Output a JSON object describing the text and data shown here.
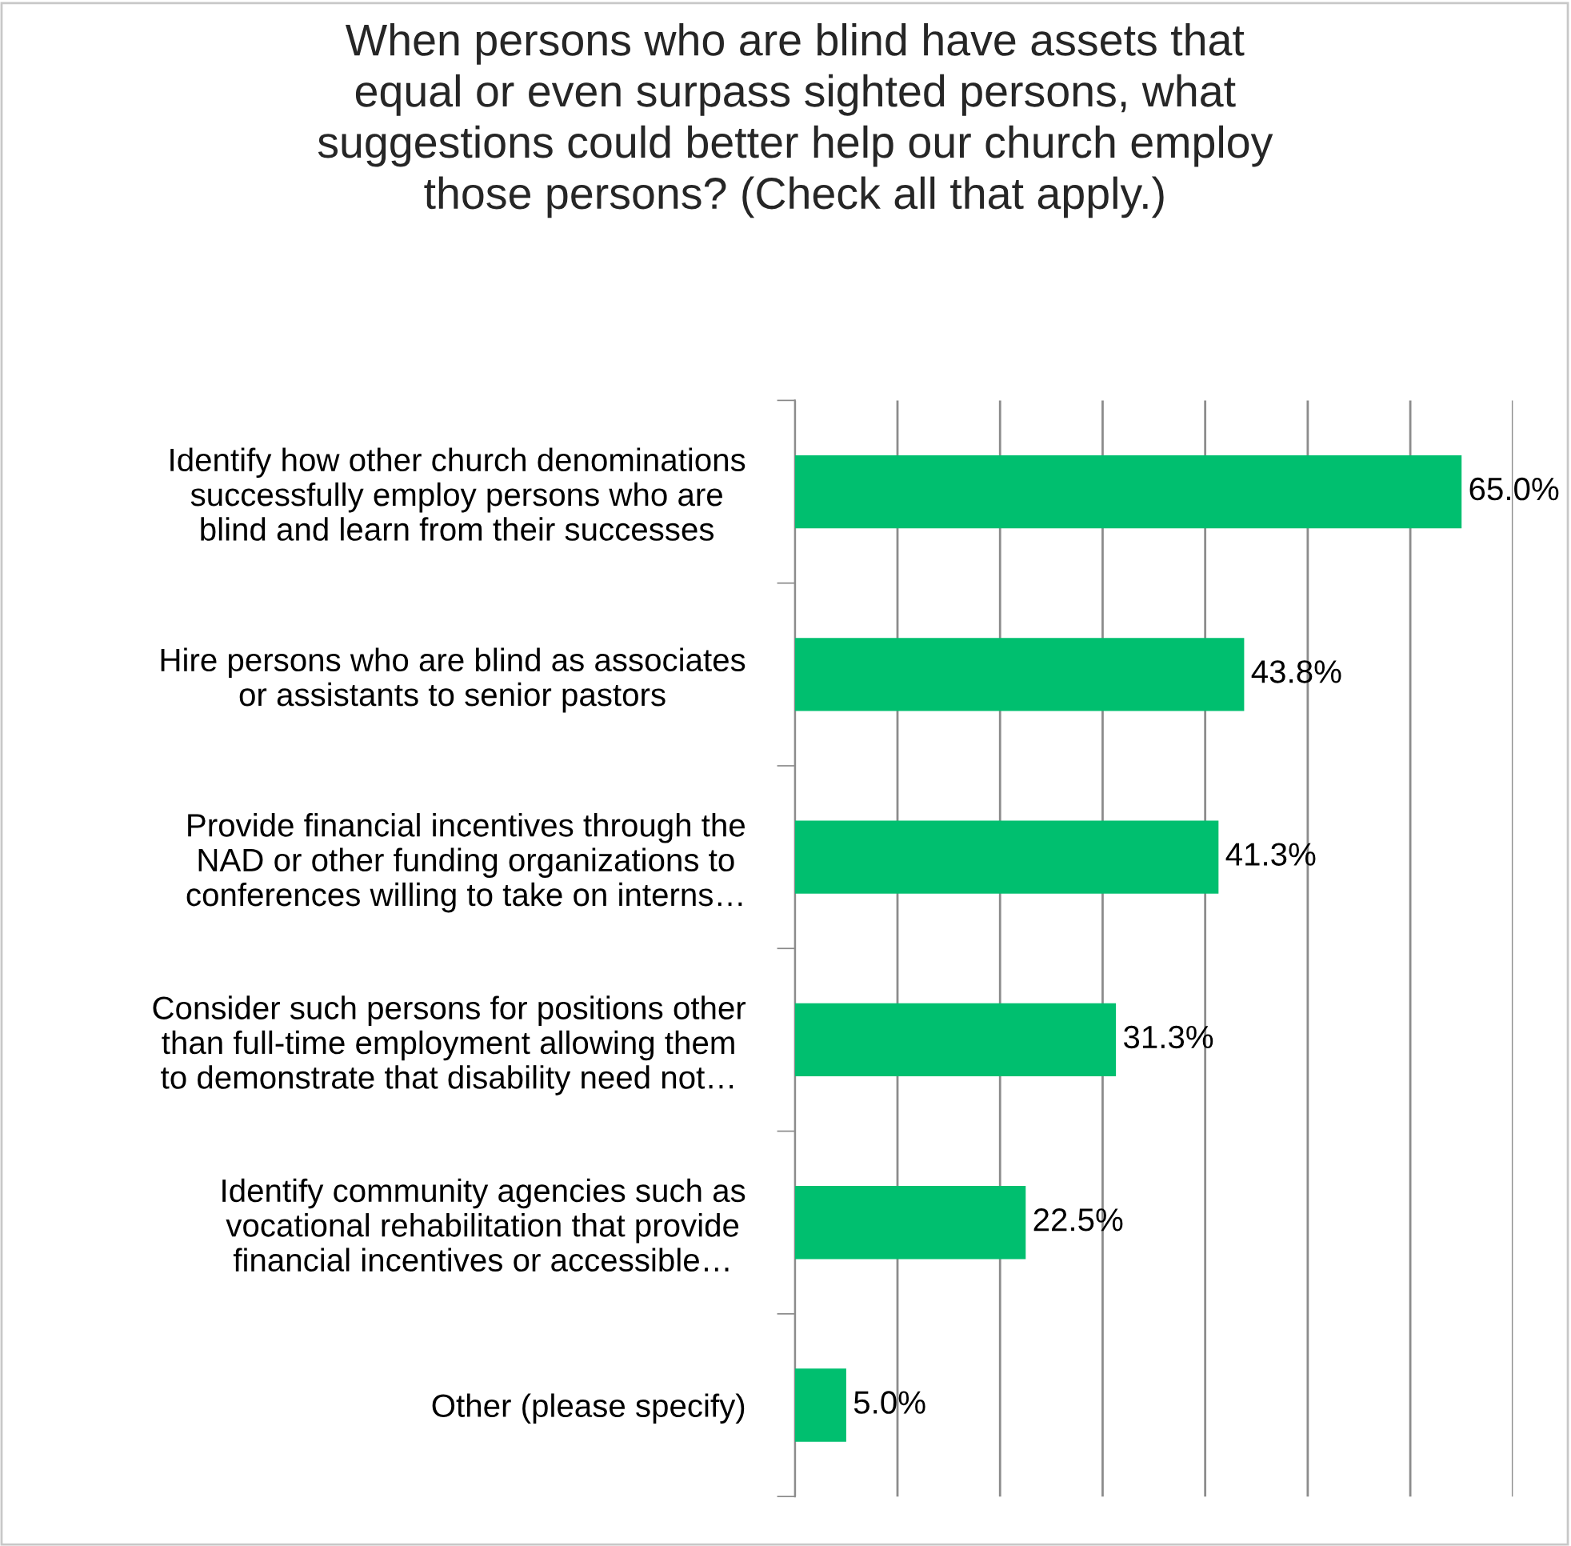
{
  "chart_data": {
    "type": "bar",
    "orientation": "horizontal",
    "title": "When persons who are blind have assets that\nequal or even surpass sighted persons, what\nsuggestions could better help our church employ\nthose persons? (Check all that apply.)",
    "categories": [
      "Identify how other church denominations\nsuccessfully employ persons who are\nblind and learn from their successes",
      "Hire persons who are blind as associates\nor assistants to senior pastors",
      "Provide financial incentives through the\nNAD or other funding organizations to\nconferences willing to take on interns…",
      "Consider such persons for positions other\nthan full-time employment allowing them\nto demonstrate that disability need not…",
      "Identify community agencies such as\nvocational rehabilitation that provide\nfinancial incentives or accessible…",
      "Other (please specify)"
    ],
    "values": [
      65.0,
      43.8,
      41.3,
      31.3,
      22.5,
      5.0
    ],
    "value_labels": [
      "65.0%",
      "43.8%",
      "41.3%",
      "31.3%",
      "22.5%",
      "5.0%"
    ],
    "color": "#00bf6f",
    "xlim": [
      0,
      70
    ],
    "xticks": [
      {
        "value": 0,
        "label": null
      },
      {
        "value": 10,
        "label": null
      },
      {
        "value": 20,
        "label": null
      },
      {
        "value": 30,
        "label": null
      },
      {
        "value": 40,
        "label": null
      },
      {
        "value": 50,
        "label": null
      },
      {
        "value": 60,
        "label": null
      },
      {
        "value": 70,
        "label": null
      }
    ],
    "grid": "x",
    "tick_labels": "y",
    "legend": false
  }
}
